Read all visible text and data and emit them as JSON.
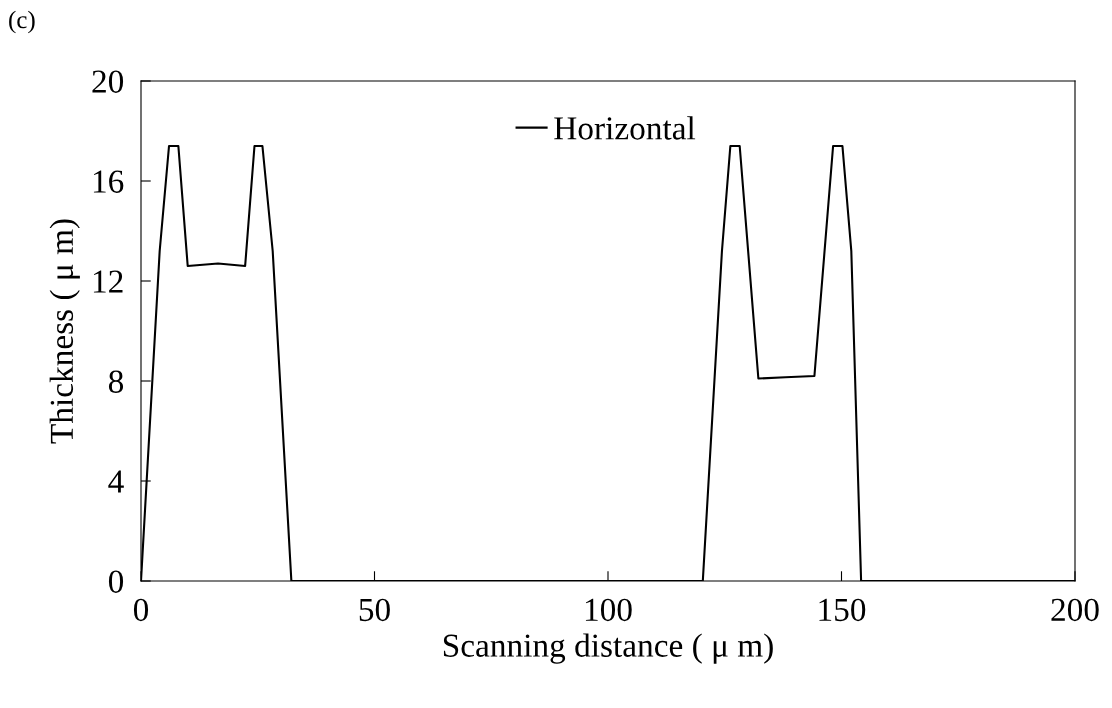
{
  "chart_data": {
    "type": "line",
    "xlabel": "Scanning distance ( μ m)",
    "ylabel": "Thickness ( μ m)",
    "annotations": [
      "(c)"
    ],
    "series": [
      {
        "name": "Horizontal",
        "color": "#000000",
        "x": [
          0,
          4,
          6,
          8,
          10,
          16.5,
          22.3,
          24.3,
          26,
          28.2,
          32.2,
          120.3,
          124.4,
          126.2,
          128.2,
          132.2,
          138,
          144.2,
          148.2,
          150.2,
          152.1,
          154.2,
          200
        ],
        "values": [
          0,
          13.2,
          17.4,
          17.4,
          12.6,
          12.7,
          12.6,
          17.4,
          17.4,
          13.2,
          0,
          0,
          13.2,
          17.4,
          17.4,
          8.1,
          8.15,
          8.2,
          17.4,
          17.4,
          13.2,
          0,
          0
        ]
      }
    ],
    "xlim": [
      0,
      200
    ],
    "xticks": [
      0,
      50,
      100,
      150,
      200
    ],
    "ylim": [
      0,
      20
    ],
    "yticks": [
      0,
      4,
      8,
      12,
      16,
      20
    ],
    "grid": false,
    "legend": "top",
    "marker": "none",
    "line_style": "solid"
  }
}
